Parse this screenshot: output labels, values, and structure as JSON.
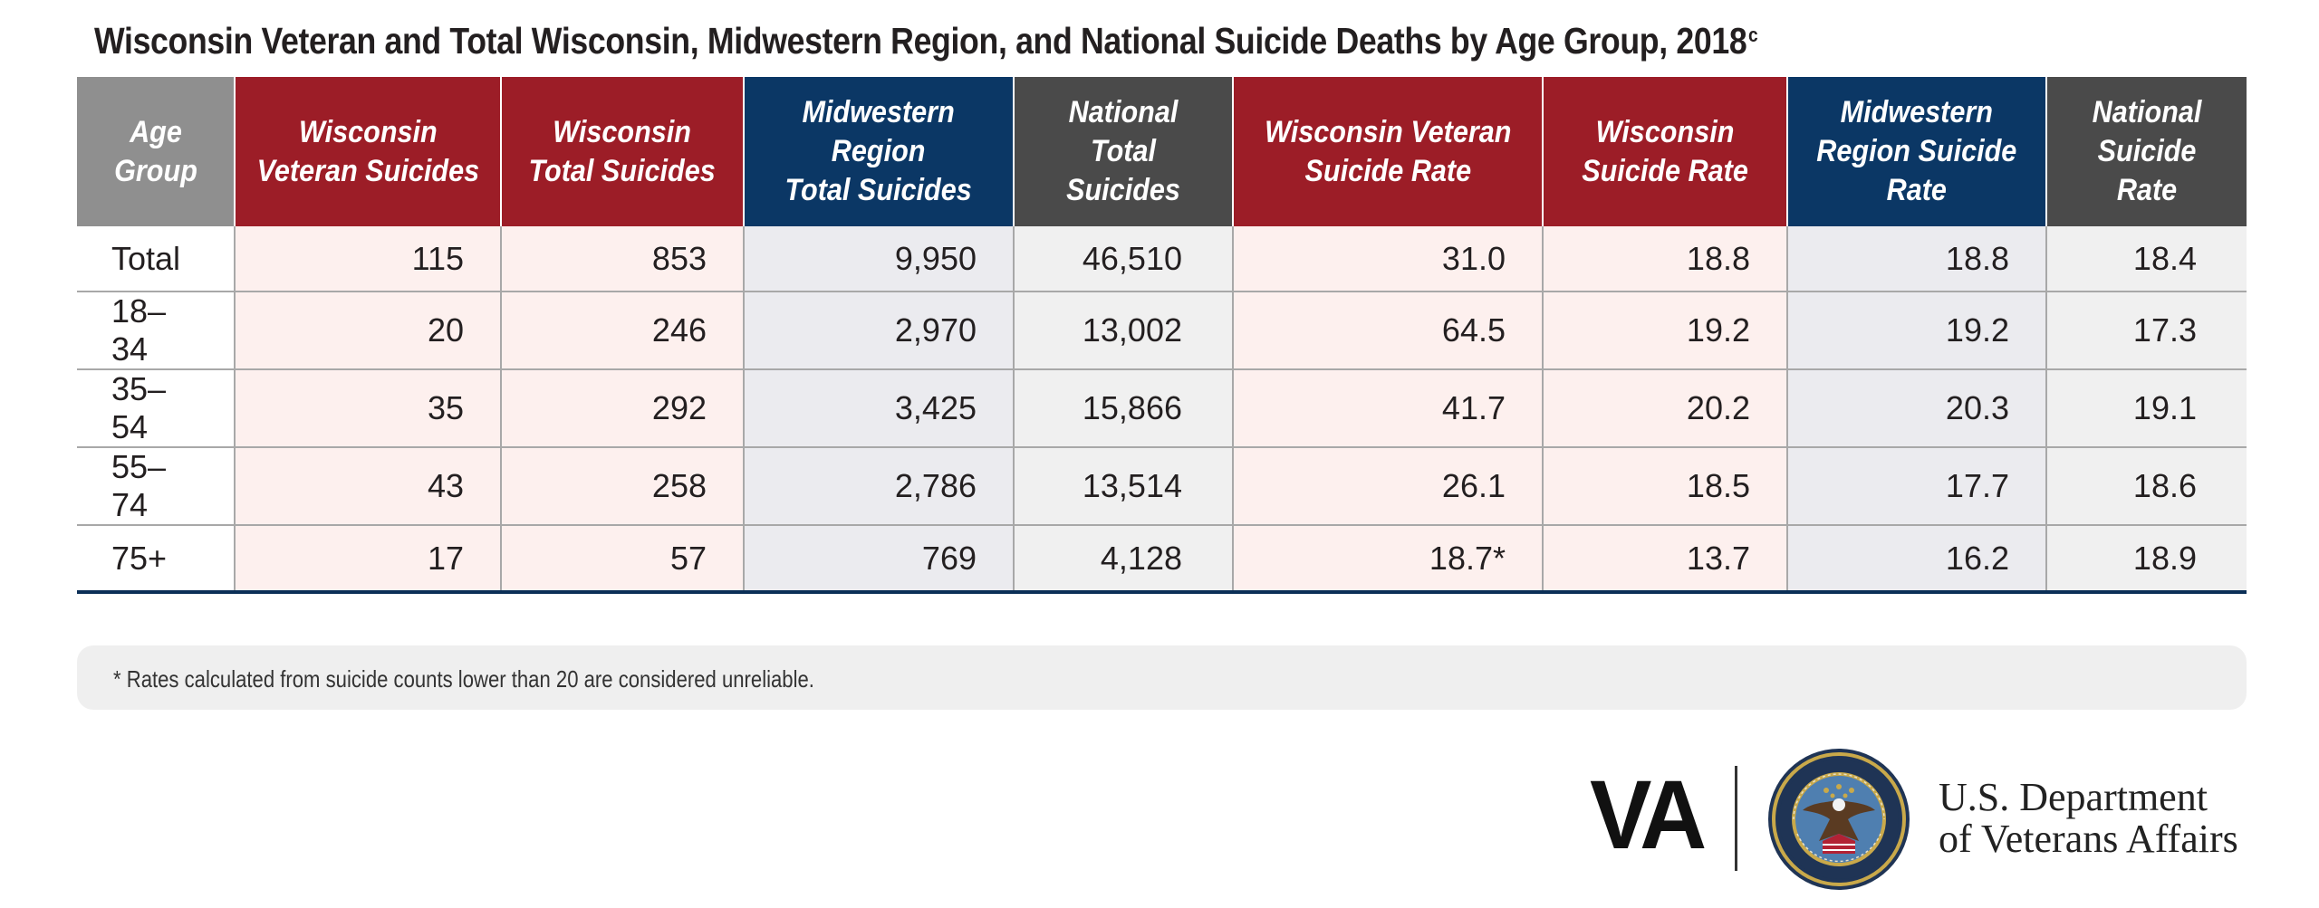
{
  "title": {
    "text": "Wisconsin Veteran and Total Wisconsin, Midwestern Region, and National Suicide Deaths by Age Group, 2018",
    "superscript": "c"
  },
  "table": {
    "headers": [
      {
        "line1": "Age",
        "line2": "Group"
      },
      {
        "line1": "Wisconsin",
        "line2": "Veteran Suicides"
      },
      {
        "line1": "Wisconsin",
        "line2": "Total Suicides"
      },
      {
        "line1": "Midwestern",
        "line2": "Region",
        "line3": "Total Suicides"
      },
      {
        "line1": "National",
        "line2": "Total Suicides"
      },
      {
        "line1": "Wisconsin Veteran",
        "line2": "Suicide Rate"
      },
      {
        "line1": "Wisconsin",
        "line2": "Suicide Rate"
      },
      {
        "line1": "Midwestern",
        "line2": "Region Suicide",
        "line3": "Rate"
      },
      {
        "line1": "National",
        "line2": "Suicide Rate"
      }
    ],
    "rows": [
      [
        "Total",
        "115",
        "853",
        "9,950",
        "46,510",
        "31.0",
        "18.8",
        "18.8",
        "18.4"
      ],
      [
        "18–34",
        "20",
        "246",
        "2,970",
        "13,002",
        "64.5",
        "19.2",
        "19.2",
        "17.3"
      ],
      [
        "35–54",
        "35",
        "292",
        "3,425",
        "15,866",
        "41.7",
        "20.2",
        "20.3",
        "19.1"
      ],
      [
        "55–74",
        "43",
        "258",
        "2,786",
        "13,514",
        "26.1",
        "18.5",
        "17.7",
        "18.6"
      ],
      [
        "75+",
        "17",
        "57",
        "769",
        "4,128",
        "18.7*",
        "13.7",
        "16.2",
        "18.9"
      ]
    ]
  },
  "footnote": "* Rates calculated from suicide counts lower than 20 are considered unreliable.",
  "footer": {
    "logo_text": "VA",
    "department_line1": "U.S. Department",
    "department_line2": "of Veterans Affairs"
  },
  "colors": {
    "red_header": "#9c1d27",
    "blue_header": "#0b3765",
    "gray_header": "#4a4a4a",
    "age_header": "#8f8f8f"
  }
}
